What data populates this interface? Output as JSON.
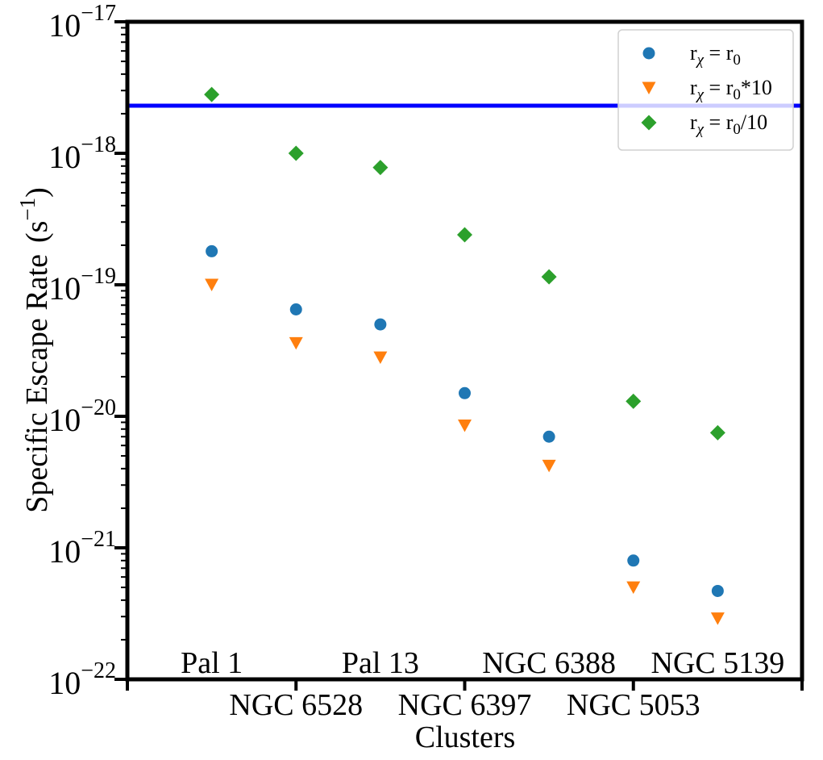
{
  "chart_data": {
    "type": "scatter",
    "xlabel": "Clusters",
    "ylabel": "Specific Escape Rate",
    "ylabel_unit": "(s",
    "ylabel_unit_exp": "−1",
    "ylabel_unit_close": ")",
    "yscale": "log",
    "ylim_exp": [
      -22,
      -17
    ],
    "y_tick_base": "10",
    "y_tick_exponents": [
      "−22",
      "−21",
      "−20",
      "−19",
      "−18",
      "−17"
    ],
    "categories": [
      "Pal 1",
      "NGC 6528",
      "Pal 13",
      "NGC 6397",
      "NGC 6388",
      "NGC 5053",
      "NGC 5139"
    ],
    "category_label_rows": [
      "top",
      "bottom",
      "top",
      "bottom",
      "top",
      "bottom",
      "top"
    ],
    "xlim": [
      -1,
      7
    ],
    "x_ticks": [
      -1,
      1,
      3,
      5,
      7
    ],
    "hline": {
      "y": 2.3e-18,
      "color": "#0000ff"
    },
    "grid": false,
    "legend_position": "top-right",
    "series": [
      {
        "label_base": "r",
        "label_sub": "χ",
        "label_rest": " = r",
        "label_sub2": "0",
        "label_tail": "",
        "marker": "circle",
        "color": "#1f77b4",
        "values": [
          1.8e-19,
          6.5e-20,
          5e-20,
          1.5e-20,
          7e-21,
          8e-22,
          4.7e-22
        ]
      },
      {
        "label_base": "r",
        "label_sub": "χ",
        "label_rest": " = r",
        "label_sub2": "0",
        "label_tail": "*10",
        "marker": "triangle-down",
        "color": "#ff7f0e",
        "values": [
          1e-19,
          3.6e-20,
          2.8e-20,
          8.5e-21,
          4.2e-21,
          5e-22,
          2.9e-22
        ]
      },
      {
        "label_base": "r",
        "label_sub": "χ",
        "label_rest": " = r",
        "label_sub2": "0",
        "label_tail": "/10",
        "marker": "diamond",
        "color": "#2ca02c",
        "values": [
          2.8e-18,
          1e-18,
          7.8e-19,
          2.4e-19,
          1.15e-19,
          1.3e-20,
          7.5e-21
        ]
      }
    ]
  }
}
